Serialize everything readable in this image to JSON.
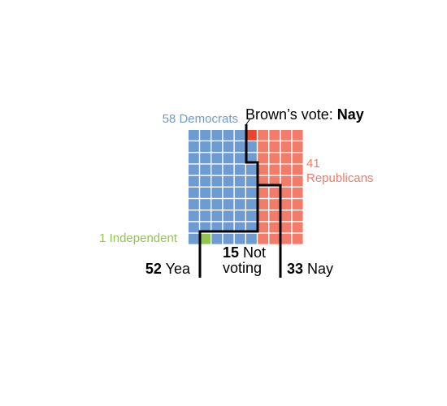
{
  "chart_data": {
    "type": "waffle",
    "groups": [
      {
        "label": "58 Democrats",
        "value": 58,
        "color": "#6f9bd3"
      },
      {
        "label": [
          "41",
          "Republicans"
        ],
        "value": 41,
        "color": "#f27b69"
      },
      {
        "label": "1 Independent",
        "value": 1,
        "color": "#8fc64f"
      }
    ],
    "highlight": {
      "label": "Brown’s vote: ",
      "vote": "Nay",
      "color": "#e8452b"
    },
    "votes": [
      {
        "value": 52,
        "label": "Yea"
      },
      {
        "value": 15,
        "label": [
          "Not",
          "voting"
        ]
      },
      {
        "value": 33,
        "label": "Nay"
      }
    ]
  }
}
